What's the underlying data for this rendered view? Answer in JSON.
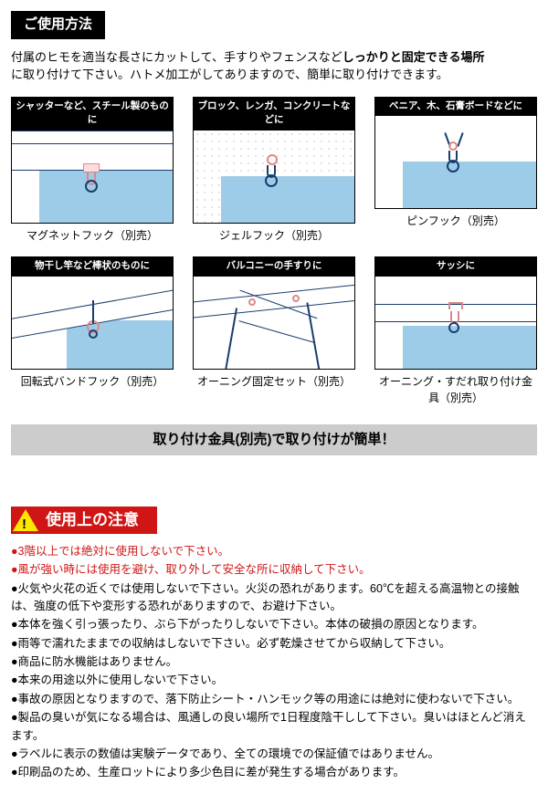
{
  "header1": "ご使用方法",
  "intro": {
    "l1a": "付属のヒモを適当な長さにカットして、手すりやフェンスなど",
    "l1b": "しっかりと固定できる場所",
    "l2": "に取り付けて下さい。ハトメ加工がしてありますので、簡単に取り付けできます。"
  },
  "cards": [
    {
      "hd": "シャッターなど、スチール製のものに",
      "cap": "マグネットフック（別売）"
    },
    {
      "hd": "ブロック、レンガ、コンクリートなどに",
      "cap": "ジェルフック（別売）"
    },
    {
      "hd": "ベニア、木、石膏ボードなどに",
      "cap": "ピンフック（別売）"
    },
    {
      "hd": "物干し竿など棒状のものに",
      "cap": "回転式バンドフック（別売）"
    },
    {
      "hd": "バルコニーの手すりに",
      "cap": "オーニング固定セット（別売）"
    },
    {
      "hd": "サッシに",
      "cap": "オーニング・すだれ取り付け金具（別売）"
    }
  ],
  "band": "取り付け金具(別売)で取り付けが簡単！",
  "warn_title": "使用上の注意",
  "cautions": [
    {
      "red": true,
      "t": "●3階以上では絶対に使用しないで下さい。"
    },
    {
      "red": true,
      "t": "●風が強い時には使用を避け、取り外して安全な所に収納して下さい。"
    },
    {
      "red": false,
      "t": "●火気や火花の近くでは使用しないで下さい。火災の恐れがあります。60℃を超える高温物との接触は、強度の低下や変形する恐れがありますので、お避け下さい。"
    },
    {
      "red": false,
      "t": "●本体を強く引っ張ったり、ぶら下がったりしないで下さい。本体の破損の原因となります。"
    },
    {
      "red": false,
      "t": "●雨等で濡れたままでの収納はしないで下さい。必ず乾燥させてから収納して下さい。"
    },
    {
      "red": false,
      "t": "●商品に防水機能はありません。"
    },
    {
      "red": false,
      "t": "●本来の用途以外に使用しないで下さい。"
    },
    {
      "red": false,
      "t": "●事故の原因となりますので、落下防止シート・ハンモック等の用途には絶対に使わないで下さい。"
    },
    {
      "red": false,
      "t": "●製品の臭いが気になる場合は、風通しの良い場所で1日程度陰干しして下さい。臭いはほとんど消えます。"
    },
    {
      "red": false,
      "t": "●ラベルに表示の数値は実験データであり、全ての環境での保証値ではありません。"
    },
    {
      "red": false,
      "t": "●印刷品のため、生産ロットにより多少色目に差が発生する場合があります。"
    }
  ],
  "colors": {
    "skyblue": "#9dcce8",
    "navy": "#1a3d6e",
    "pink": "#d88",
    "red": "#d01515",
    "yellow": "#ffe600"
  }
}
